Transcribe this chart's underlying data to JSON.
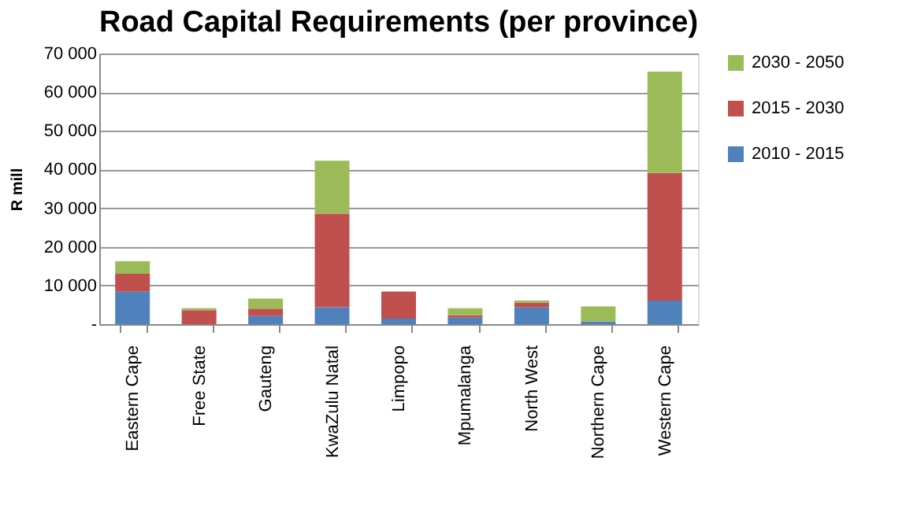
{
  "chart_data": {
    "type": "bar",
    "title": "Road Capital Requirements (per province)",
    "ylabel": "R mill",
    "categories": [
      "Eastern Cape",
      "Free State",
      "Gauteng",
      "KwaZulu Natal",
      "Limpopo",
      "Mpumalanga",
      "North West",
      "Northern Cape",
      "Western Cape"
    ],
    "stacked": true,
    "series": [
      {
        "name": "2010 - 2015",
        "color": "#4f81bd",
        "values": [
          8400,
          0,
          2100,
          4400,
          1400,
          1700,
          4300,
          700,
          6100
        ]
      },
      {
        "name": "2015 - 2030",
        "color": "#c0504d",
        "values": [
          4600,
          3600,
          1900,
          24200,
          7000,
          600,
          1300,
          0,
          33000
        ]
      },
      {
        "name": "2030 - 2050",
        "color": "#9bbb59",
        "values": [
          3300,
          500,
          2600,
          13700,
          100,
          1800,
          500,
          3900,
          26200
        ]
      }
    ],
    "ylim": [
      0,
      70000
    ],
    "yticks": [
      {
        "value": 0,
        "label": "-"
      },
      {
        "value": 10000,
        "label": "10 000"
      },
      {
        "value": 20000,
        "label": "20 000"
      },
      {
        "value": 30000,
        "label": "30 000"
      },
      {
        "value": 40000,
        "label": "40 000"
      },
      {
        "value": 50000,
        "label": "50 000"
      },
      {
        "value": 60000,
        "label": "60 000"
      },
      {
        "value": 70000,
        "label": "70 000"
      }
    ],
    "grid": "y",
    "legend": "right"
  }
}
